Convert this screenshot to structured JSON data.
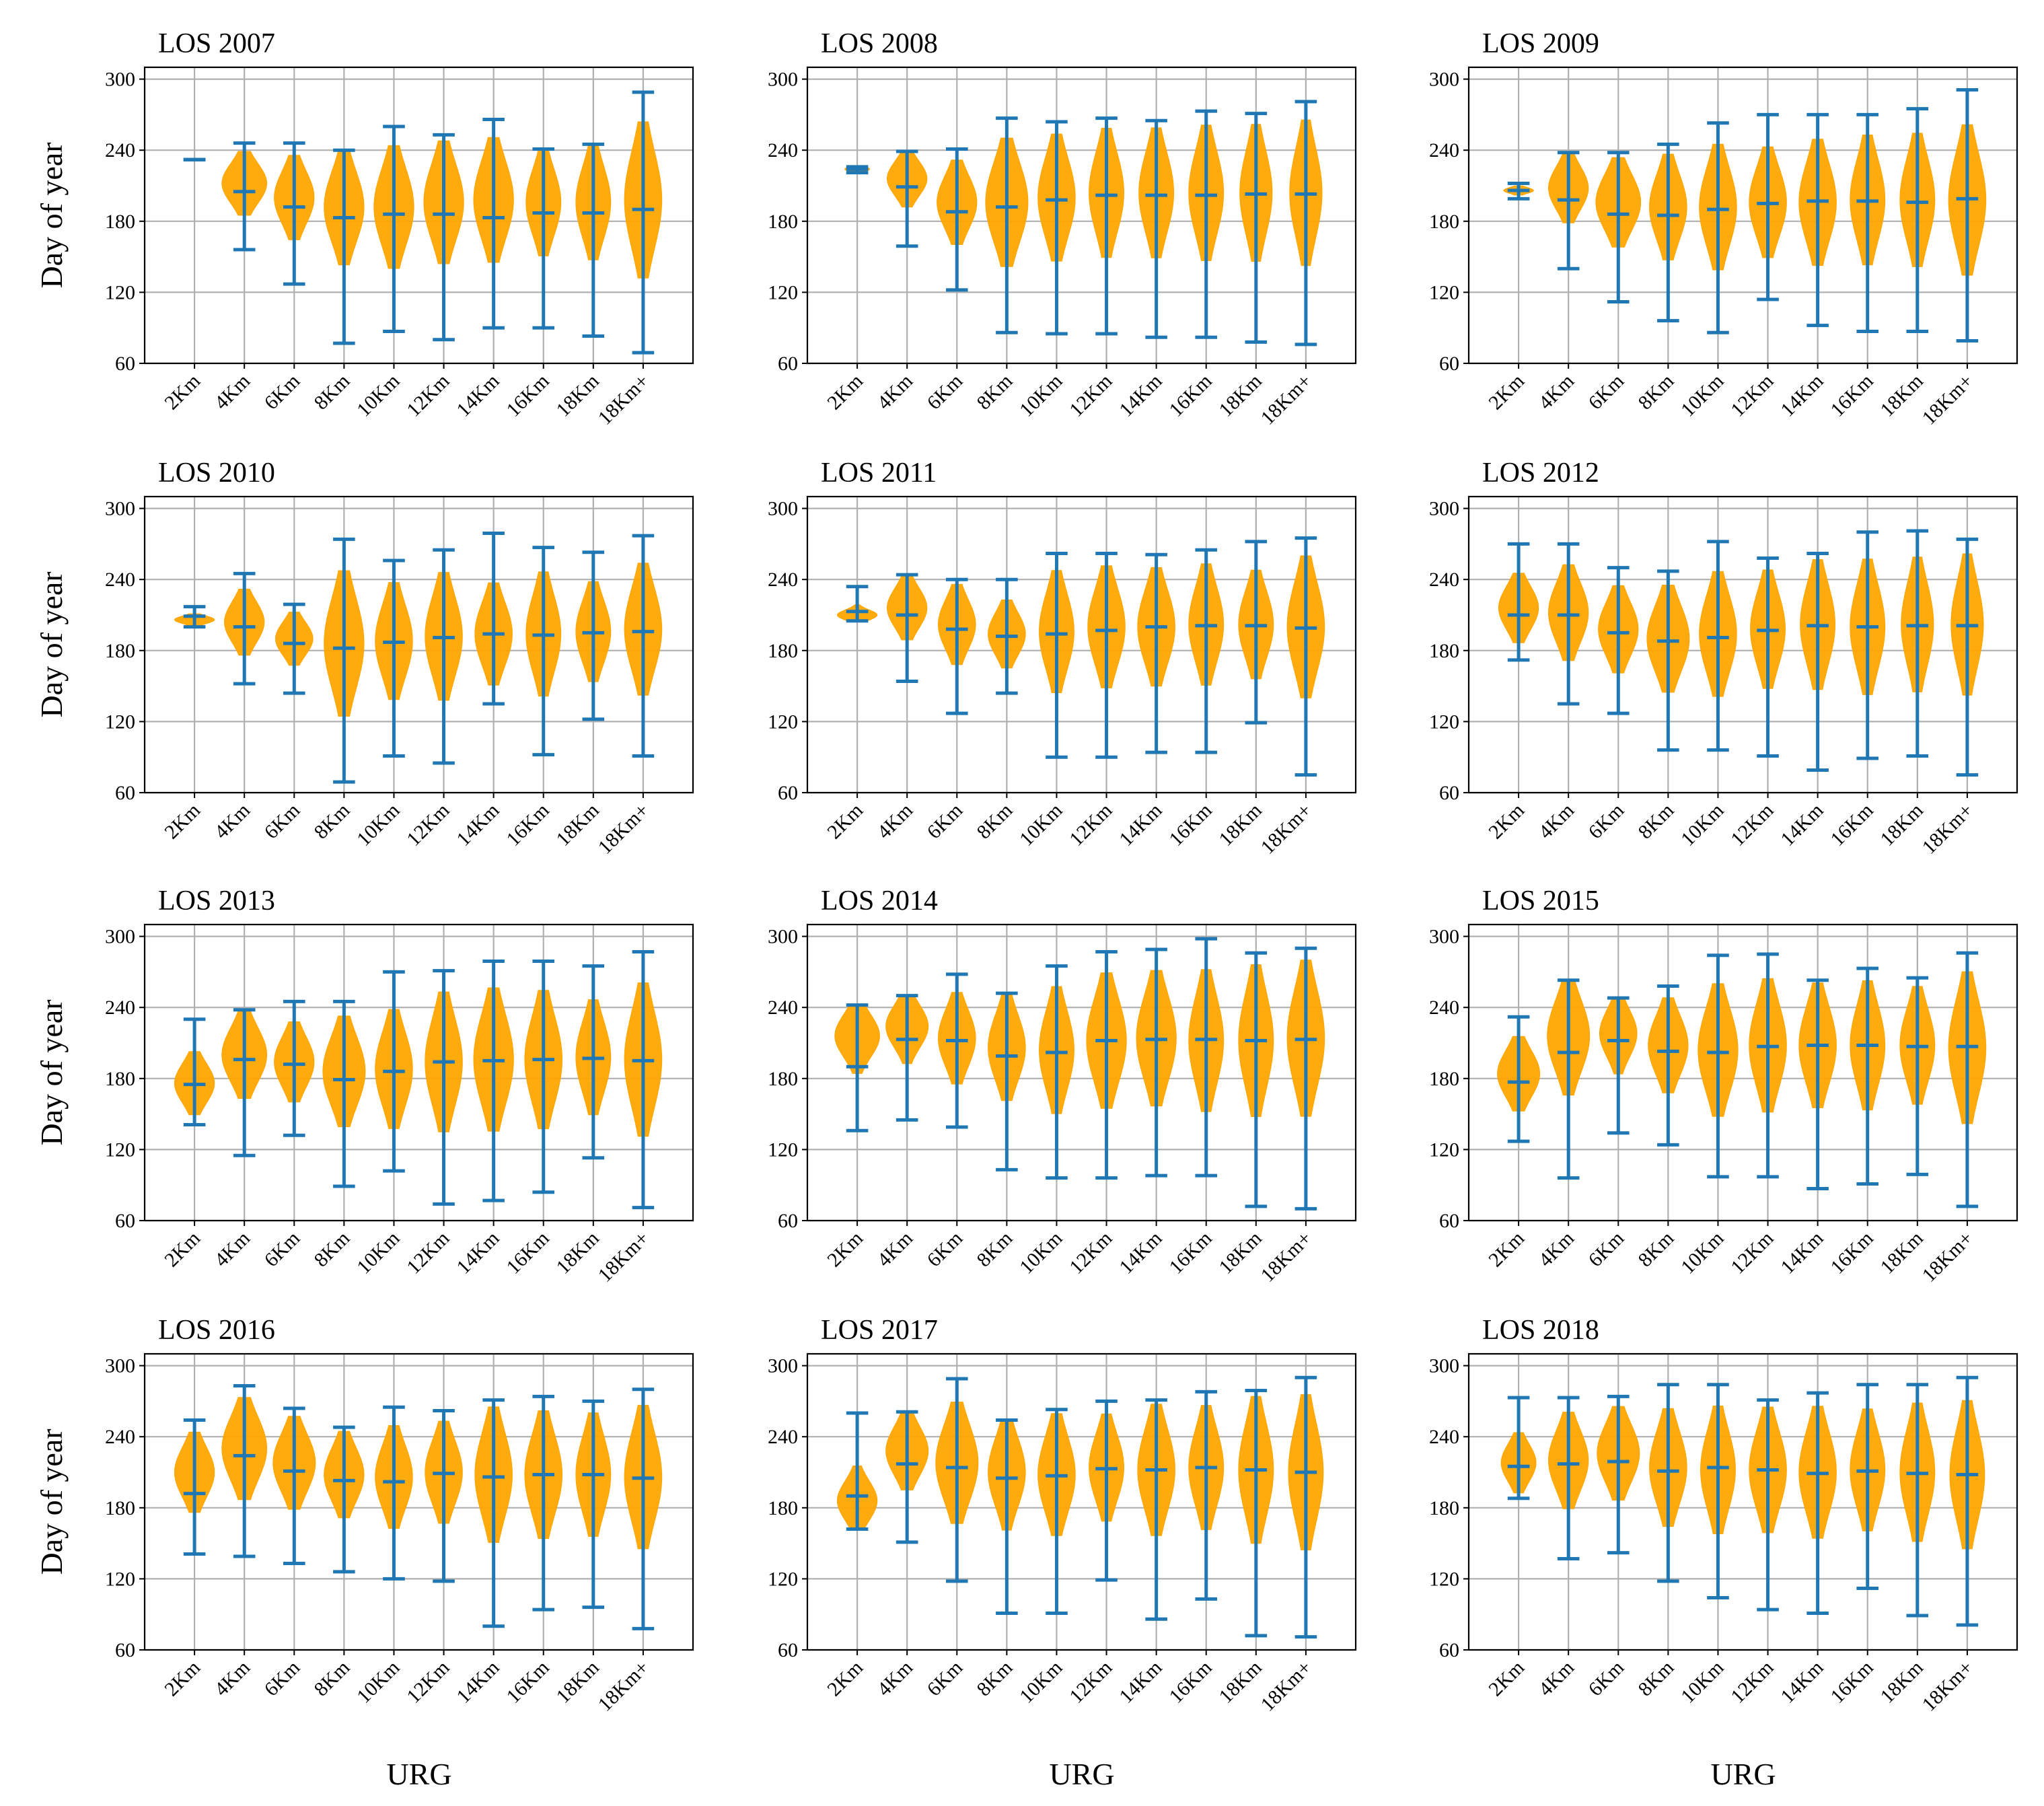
{
  "chart_data": {
    "type": "violin",
    "x_axis_title": "URG",
    "y_axis_title": "Day of year",
    "categories": [
      "2Km",
      "4Km",
      "6Km",
      "8Km",
      "10Km",
      "12Km",
      "14Km",
      "16Km",
      "18Km",
      "18Km+"
    ],
    "ylim": [
      60,
      310
    ],
    "yticks": [
      "60",
      "120",
      "180",
      "240",
      "300"
    ],
    "grid": true,
    "colors": {
      "violin": "#FFA500",
      "stats": "#1f77b4",
      "grid": "#b0b0b0"
    },
    "panels": [
      {
        "title": "LOS 2007",
        "min": [
          232,
          156,
          127,
          77,
          87,
          80,
          90,
          90,
          83,
          69
        ],
        "max": [
          232,
          246,
          246,
          240,
          260,
          253,
          266,
          241,
          245,
          289
        ],
        "median": [
          232,
          205,
          192,
          183,
          186,
          186,
          183,
          187,
          187,
          190
        ],
        "center": [
          232,
          212,
          200,
          192,
          192,
          196,
          198,
          196,
          196,
          198
        ],
        "width": [
          0.05,
          0.9,
          0.8,
          0.8,
          0.8,
          0.8,
          0.8,
          0.7,
          0.7,
          0.75
        ]
      },
      {
        "title": "LOS 2008",
        "min": [
          221,
          159,
          122,
          86,
          85,
          85,
          82,
          82,
          78,
          76
        ],
        "max": [
          226,
          239,
          241,
          267,
          264,
          267,
          265,
          273,
          271,
          281
        ],
        "median": [
          224,
          209,
          188,
          192,
          198,
          202,
          202,
          202,
          203,
          203
        ],
        "center": [
          224,
          216,
          196,
          196,
          200,
          204,
          204,
          204,
          204,
          204
        ],
        "width": [
          0.5,
          0.8,
          0.8,
          0.85,
          0.75,
          0.7,
          0.7,
          0.7,
          0.65,
          0.65
        ]
      },
      {
        "title": "LOS 2009",
        "min": [
          199,
          140,
          112,
          96,
          86,
          114,
          92,
          87,
          87,
          79
        ],
        "max": [
          212,
          238,
          238,
          245,
          263,
          270,
          270,
          270,
          275,
          291
        ],
        "median": [
          206,
          198,
          186,
          185,
          190,
          195,
          197,
          197,
          196,
          199
        ],
        "center": [
          206,
          208,
          196,
          192,
          192,
          196,
          196,
          198,
          198,
          198
        ],
        "width": [
          0.6,
          0.8,
          0.9,
          0.75,
          0.75,
          0.75,
          0.75,
          0.7,
          0.7,
          0.75
        ]
      },
      {
        "title": "LOS 2010",
        "min": [
          200,
          152,
          144,
          69,
          91,
          85,
          135,
          92,
          122,
          91
        ],
        "max": [
          217,
          245,
          219,
          274,
          256,
          265,
          279,
          267,
          263,
          277
        ],
        "median": [
          209,
          200,
          186,
          182,
          187,
          191,
          194,
          193,
          195,
          196
        ],
        "center": [
          206,
          204,
          190,
          186,
          188,
          192,
          194,
          194,
          196,
          198
        ],
        "width": [
          0.8,
          0.8,
          0.75,
          0.8,
          0.75,
          0.75,
          0.75,
          0.7,
          0.7,
          0.75
        ]
      },
      {
        "title": "LOS 2011",
        "min": [
          205,
          154,
          127,
          144,
          90,
          90,
          94,
          94,
          119,
          75
        ],
        "max": [
          234,
          244,
          240,
          240,
          262,
          262,
          261,
          265,
          272,
          275
        ],
        "median": [
          213,
          210,
          198,
          192,
          194,
          197,
          200,
          201,
          201,
          199
        ],
        "center": [
          210,
          216,
          202,
          194,
          196,
          200,
          200,
          202,
          202,
          200
        ],
        "width": [
          0.8,
          0.8,
          0.75,
          0.75,
          0.7,
          0.75,
          0.75,
          0.7,
          0.7,
          0.75
        ]
      },
      {
        "title": "LOS 2012",
        "min": [
          172,
          135,
          127,
          96,
          96,
          91,
          79,
          89,
          91,
          75
        ],
        "max": [
          270,
          270,
          250,
          247,
          272,
          258,
          262,
          280,
          281,
          274
        ],
        "median": [
          210,
          210,
          195,
          188,
          191,
          197,
          201,
          200,
          201,
          201
        ],
        "center": [
          216,
          212,
          198,
          190,
          194,
          198,
          202,
          200,
          202,
          202
        ],
        "width": [
          0.8,
          0.8,
          0.8,
          0.85,
          0.75,
          0.7,
          0.7,
          0.7,
          0.65,
          0.65
        ]
      },
      {
        "title": "LOS 2013",
        "min": [
          141,
          115,
          132,
          89,
          102,
          74,
          77,
          84,
          113,
          71
        ],
        "max": [
          230,
          238,
          245,
          245,
          270,
          271,
          279,
          279,
          275,
          287
        ],
        "median": [
          175,
          196,
          192,
          179,
          186,
          194,
          195,
          196,
          197,
          195
        ],
        "center": [
          176,
          200,
          194,
          186,
          188,
          194,
          196,
          196,
          198,
          196
        ],
        "width": [
          0.8,
          0.9,
          0.8,
          0.85,
          0.75,
          0.75,
          0.8,
          0.75,
          0.7,
          0.75
        ]
      },
      {
        "title": "LOS 2014",
        "min": [
          136,
          145,
          139,
          103,
          96,
          96,
          98,
          98,
          72,
          70
        ],
        "max": [
          242,
          250,
          268,
          252,
          275,
          287,
          289,
          298,
          286,
          290
        ],
        "median": [
          190,
          213,
          212,
          199,
          202,
          212,
          213,
          213,
          212,
          213
        ],
        "center": [
          216,
          224,
          214,
          206,
          204,
          212,
          214,
          212,
          212,
          214
        ],
        "width": [
          0.9,
          0.85,
          0.75,
          0.75,
          0.7,
          0.8,
          0.8,
          0.7,
          0.7,
          0.75
        ]
      },
      {
        "title": "LOS 2015",
        "min": [
          127,
          96,
          134,
          124,
          97,
          97,
          87,
          91,
          99,
          72
        ],
        "max": [
          232,
          263,
          248,
          258,
          284,
          285,
          263,
          273,
          265,
          286
        ],
        "median": [
          177,
          202,
          212,
          203,
          202,
          207,
          208,
          208,
          207,
          207
        ],
        "center": [
          184,
          216,
          218,
          208,
          204,
          208,
          208,
          208,
          208,
          206
        ],
        "width": [
          0.85,
          0.85,
          0.75,
          0.8,
          0.8,
          0.75,
          0.75,
          0.7,
          0.7,
          0.75
        ]
      },
      {
        "title": "LOS 2016",
        "min": [
          141,
          139,
          133,
          126,
          120,
          118,
          80,
          94,
          96,
          78
        ],
        "max": [
          254,
          283,
          264,
          248,
          265,
          262,
          271,
          274,
          270,
          280
        ],
        "median": [
          192,
          224,
          211,
          203,
          202,
          209,
          206,
          208,
          208,
          205
        ],
        "center": [
          210,
          230,
          218,
          208,
          206,
          210,
          208,
          208,
          208,
          206
        ],
        "width": [
          0.8,
          0.9,
          0.85,
          0.8,
          0.75,
          0.75,
          0.75,
          0.75,
          0.7,
          0.75
        ]
      },
      {
        "title": "LOS 2017",
        "min": [
          162,
          151,
          118,
          91,
          91,
          119,
          86,
          103,
          72,
          71
        ],
        "max": [
          260,
          261,
          289,
          254,
          263,
          270,
          271,
          278,
          279,
          290
        ],
        "median": [
          190,
          217,
          214,
          205,
          207,
          213,
          212,
          214,
          212,
          210
        ],
        "center": [
          186,
          228,
          218,
          210,
          208,
          214,
          212,
          214,
          212,
          210
        ],
        "width": [
          0.8,
          0.85,
          0.85,
          0.75,
          0.75,
          0.7,
          0.75,
          0.7,
          0.7,
          0.7
        ]
      },
      {
        "title": "LOS 2018",
        "min": [
          188,
          137,
          142,
          118,
          104,
          94,
          91,
          112,
          89,
          81
        ],
        "max": [
          273,
          273,
          274,
          284,
          284,
          271,
          277,
          284,
          284,
          290
        ],
        "median": [
          215,
          217,
          219,
          211,
          214,
          212,
          209,
          211,
          209,
          208
        ],
        "center": [
          218,
          220,
          226,
          214,
          212,
          212,
          210,
          212,
          210,
          208
        ],
        "width": [
          0.7,
          0.8,
          0.85,
          0.75,
          0.7,
          0.75,
          0.75,
          0.7,
          0.7,
          0.7
        ]
      }
    ]
  }
}
